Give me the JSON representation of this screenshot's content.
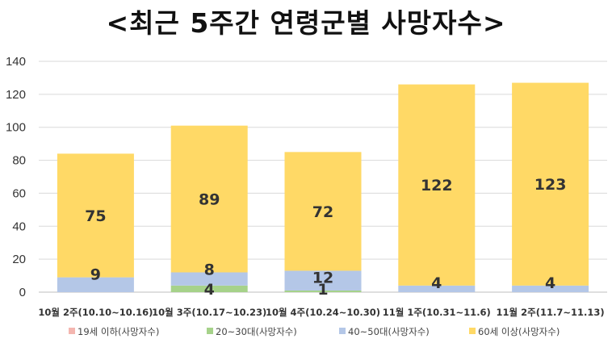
{
  "chart_data": {
    "type": "bar",
    "stacked": true,
    "title": "<최근 5주간 연령군별 사망자수>",
    "categories": [
      "10월 2주(10.10~10.16)",
      "10월 3주(10.17~10.23)",
      "10월 4주(10.24~10.30)",
      "11월 1주(10.31~11.6)",
      "11월 2주(11.7~11.13)"
    ],
    "series": [
      {
        "name": "19세 이하(사망자수)",
        "values": [
          0,
          0,
          0,
          0,
          0
        ],
        "color": "#f4b6b0",
        "labels": [
          "",
          "",
          "",
          "",
          ""
        ]
      },
      {
        "name": "20~30대(사망자수)",
        "values": [
          0,
          4,
          1,
          0,
          0
        ],
        "color": "#a6d28a",
        "labels": [
          "",
          "4",
          "1",
          "",
          ""
        ]
      },
      {
        "name": "40~50대(사망자수)",
        "values": [
          9,
          8,
          12,
          4,
          4
        ],
        "color": "#b4c7e7",
        "labels": [
          "9",
          "8",
          "12",
          "4",
          "4"
        ]
      },
      {
        "name": "60세 이상(사망자수)",
        "values": [
          75,
          89,
          72,
          122,
          123
        ],
        "color": "#ffd966",
        "labels": [
          "75",
          "89",
          "72",
          "122",
          "123"
        ]
      }
    ],
    "yticks": [
      "0",
      "20",
      "40",
      "60",
      "80",
      "100",
      "120",
      "140"
    ],
    "ylim": [
      0,
      140
    ],
    "grid": true,
    "legend": "bottom"
  }
}
